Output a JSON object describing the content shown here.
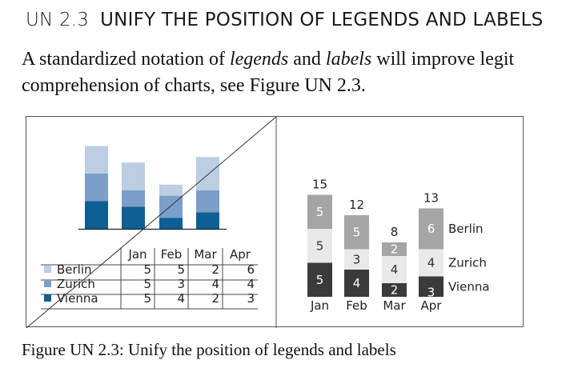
{
  "section": {
    "number": "UN 2.3",
    "title": "UNIFY THE POSITION OF LEGENDS AND LABELS"
  },
  "paragraph": {
    "p1": "A standardized notation of ",
    "legends": "legends",
    "p2": " and ",
    "labels": "labels",
    "p3": " will improve legit",
    "line2": "comprehension of charts, see Figure UN 2.3."
  },
  "caption": "Figure UN 2.3: Unify the position of legends and labels",
  "colors": {
    "vienna_left": "#0e5f94",
    "zurich_left": "#7b9fc9",
    "berlin_left": "#bccde4",
    "vienna_right": "#3a3a3a",
    "zurich_right": "#e9e9e9",
    "berlin_right": "#a5a5a5"
  },
  "chart_data": [
    {
      "type": "bar",
      "stacked": true,
      "panel": "left",
      "categories": [
        "Jan",
        "Feb",
        "Mar",
        "Apr"
      ],
      "series": [
        {
          "name": "Vienna",
          "values": [
            5,
            4,
            2,
            3
          ]
        },
        {
          "name": "Zurich",
          "values": [
            5,
            3,
            4,
            4
          ]
        },
        {
          "name": "Berlin",
          "values": [
            5,
            5,
            2,
            6
          ]
        }
      ],
      "table": {
        "headers": [
          "Jan",
          "Feb",
          "Mar",
          "Apr"
        ],
        "rows": [
          {
            "label": "Berlin",
            "values": [
              "5",
              "5",
              "2",
              "6"
            ]
          },
          {
            "label": "Zurich",
            "values": [
              "5",
              "3",
              "4",
              "4"
            ]
          },
          {
            "label": "Vienna",
            "values": [
              "5",
              "4",
              "2",
              "3"
            ]
          }
        ]
      },
      "crossed_out": true
    },
    {
      "type": "bar",
      "stacked": true,
      "panel": "right",
      "categories": [
        "Jan",
        "Feb",
        "Mar",
        "Apr"
      ],
      "totals": [
        "15",
        "12",
        "8",
        "13"
      ],
      "series": [
        {
          "name": "Vienna",
          "values": [
            5,
            4,
            2,
            3
          ],
          "labels": [
            "5",
            "4",
            "2",
            "3"
          ]
        },
        {
          "name": "Zurich",
          "values": [
            5,
            3,
            4,
            4
          ],
          "labels": [
            "5",
            "3",
            "4",
            "4"
          ]
        },
        {
          "name": "Berlin",
          "values": [
            5,
            5,
            2,
            6
          ],
          "labels": [
            "5",
            "5",
            "2",
            "6"
          ]
        }
      ]
    }
  ]
}
